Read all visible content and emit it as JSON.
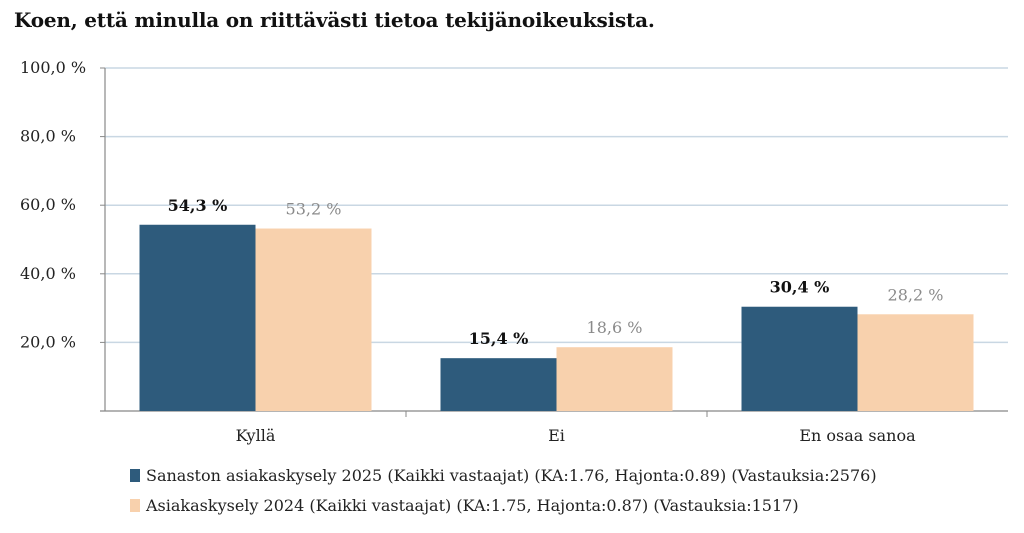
{
  "title": "Koen, että minulla on riittävästi tietoa tekijänoikeuksista.",
  "chart_data": {
    "type": "bar",
    "title": "Koen, että minulla on riittävästi tietoa tekijänoikeuksista.",
    "categories": [
      "Kyllä",
      "Ei",
      "En osaa sanoa"
    ],
    "series": [
      {
        "name": "Sanaston asiakaskysely 2025 (Kaikki vastaajat) (KA:1.76, Hajonta:0.89) (Vastauksia:2576)",
        "values": [
          54.3,
          15.4,
          30.4
        ],
        "labels": [
          "54,3 %",
          "15,4 %",
          "30,4 %"
        ],
        "color": "#2e5b7c",
        "label_color": "#111111"
      },
      {
        "name": "Asiakaskysely 2024 (Kaikki vastaajat) (KA:1.75, Hajonta:0.87) (Vastauksia:1517)",
        "values": [
          53.2,
          18.6,
          28.2
        ],
        "labels": [
          "53,2 %",
          "18,6 %",
          "28,2 %"
        ],
        "color": "#f8d1ad",
        "label_color": "#8a8a8a"
      }
    ],
    "ylim": [
      0,
      100
    ],
    "yticks": [
      20,
      40,
      60,
      80,
      100
    ],
    "ytick_labels": [
      "20,0 %",
      "40,0 %",
      "60,0 %",
      "80,0 %",
      "100,0 %"
    ],
    "xlabel": "",
    "ylabel": "",
    "grid": true,
    "gridline_color": "#c9d7e3",
    "legend_position": "bottom"
  }
}
